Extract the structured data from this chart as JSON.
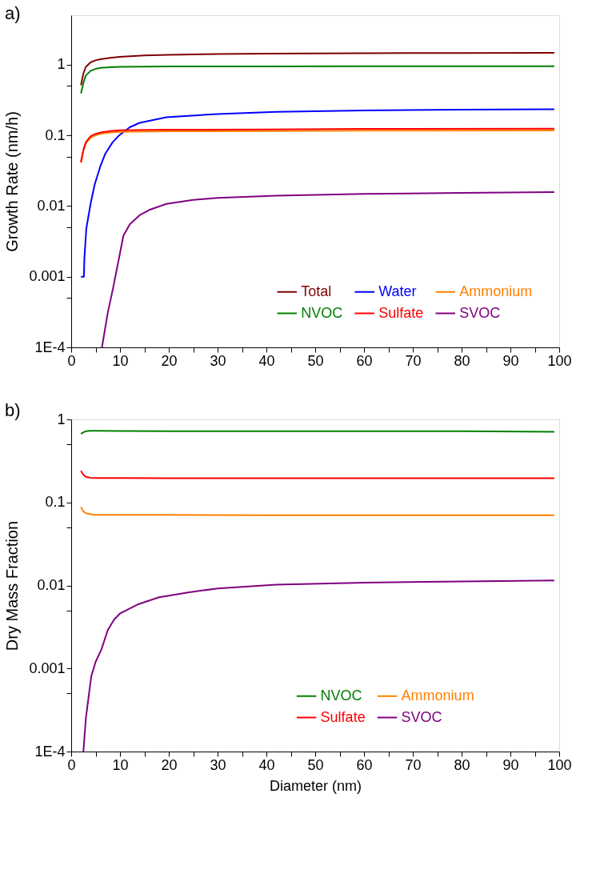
{
  "chart_data": [
    {
      "type": "line",
      "title": "a)",
      "ylabel": "Growth Rate (nm/h)",
      "log": "y",
      "grid": false,
      "legend": "bottom right",
      "line_style": "solid",
      "marker": "none",
      "xlim": [
        0,
        100
      ],
      "xticks": [
        0,
        {
          "value": 5,
          "label": null
        },
        10,
        {
          "value": 15,
          "label": null
        },
        20,
        {
          "value": 25,
          "label": null
        },
        30,
        {
          "value": 35,
          "label": null
        },
        40,
        {
          "value": 45,
          "label": null
        },
        50,
        {
          "value": 55,
          "label": null
        },
        60,
        {
          "value": 65,
          "label": null
        },
        70,
        {
          "value": 75,
          "label": null
        },
        80,
        {
          "value": 85,
          "label": null
        },
        90,
        {
          "value": 95,
          "label": null
        },
        100
      ],
      "ylim": [
        0.0001,
        5
      ],
      "yticks": [
        {
          "value": 0.0001,
          "label": "1E-4"
        },
        {
          "value": 0.0005,
          "label": null
        },
        0.001,
        {
          "value": 0.005,
          "label": null
        },
        0.01,
        {
          "value": 0.05,
          "label": null
        },
        0.1,
        {
          "value": 0.5,
          "label": null
        },
        1
      ],
      "series": [
        {
          "name": "Total",
          "color": "#800000",
          "x": [
            2,
            2.5,
            3,
            4,
            5,
            6,
            8,
            10,
            15,
            20,
            30,
            40,
            60,
            80,
            99
          ],
          "values": [
            0.51,
            0.75,
            0.93,
            1.08,
            1.15,
            1.19,
            1.25,
            1.29,
            1.35,
            1.38,
            1.41,
            1.43,
            1.45,
            1.46,
            1.47
          ]
        },
        {
          "name": "Water",
          "color": "#0000ff",
          "x": [
            2,
            2.6,
            2.7,
            3.1,
            4,
            4.8,
            6,
            7,
            8.5,
            9.7,
            12,
            14,
            19.5,
            30,
            42,
            60,
            80,
            99
          ],
          "values": [
            0.001,
            0.001,
            0.0018,
            0.0048,
            0.011,
            0.02,
            0.037,
            0.055,
            0.08,
            0.098,
            0.13,
            0.15,
            0.18,
            0.2,
            0.215,
            0.225,
            0.23,
            0.234
          ]
        },
        {
          "name": "Ammonium",
          "color": "#ff8000",
          "x": [
            2,
            2.5,
            3,
            4,
            5,
            6,
            8,
            10,
            20,
            40,
            60,
            99
          ],
          "values": [
            0.041,
            0.06,
            0.077,
            0.093,
            0.1,
            0.105,
            0.11,
            0.112,
            0.114,
            0.115,
            0.116,
            0.117
          ]
        },
        {
          "name": "NVOC",
          "color": "#008000",
          "x": [
            2,
            2.5,
            3,
            4,
            5,
            6,
            8,
            10,
            20,
            40,
            60,
            99
          ],
          "values": [
            0.39,
            0.55,
            0.7,
            0.82,
            0.87,
            0.9,
            0.92,
            0.93,
            0.94,
            0.945,
            0.95,
            0.95
          ]
        },
        {
          "name": "Sulfate",
          "color": "#ff0000",
          "x": [
            2,
            2.5,
            3,
            4,
            5,
            6,
            8,
            10,
            20,
            40,
            60,
            99
          ],
          "values": [
            0.042,
            0.062,
            0.08,
            0.097,
            0.105,
            0.11,
            0.115,
            0.118,
            0.12,
            0.121,
            0.123,
            0.124
          ]
        },
        {
          "name": "SVOC",
          "color": "#800080",
          "x": [
            6.3,
            7.5,
            8.6,
            10.7,
            12,
            14,
            16,
            19.5,
            25,
            30,
            42,
            60,
            80,
            99
          ],
          "values": [
            0.0001,
            0.00031,
            0.0007,
            0.0038,
            0.0055,
            0.0074,
            0.0088,
            0.0107,
            0.0122,
            0.013,
            0.014,
            0.0148,
            0.0153,
            0.0157
          ]
        }
      ]
    },
    {
      "type": "line",
      "title": "b)",
      "xlabel": "Diameter (nm)",
      "ylabel": "Dry Mass Fraction",
      "log": "y",
      "grid": false,
      "legend": "bottom right",
      "line_style": "solid",
      "marker": "none",
      "xlim": [
        0,
        100
      ],
      "xticks": [
        0,
        {
          "value": 5,
          "label": null
        },
        10,
        {
          "value": 15,
          "label": null
        },
        20,
        {
          "value": 25,
          "label": null
        },
        30,
        {
          "value": 35,
          "label": null
        },
        40,
        {
          "value": 45,
          "label": null
        },
        50,
        {
          "value": 55,
          "label": null
        },
        60,
        {
          "value": 65,
          "label": null
        },
        70,
        {
          "value": 75,
          "label": null
        },
        80,
        {
          "value": 85,
          "label": null
        },
        90,
        {
          "value": 95,
          "label": null
        },
        100
      ],
      "ylim": [
        0.0001,
        1
      ],
      "yticks": [
        {
          "value": 0.0001,
          "label": "1E-4"
        },
        {
          "value": 0.0005,
          "label": null
        },
        0.001,
        {
          "value": 0.005,
          "label": null
        },
        0.01,
        {
          "value": 0.05,
          "label": null
        },
        0.1,
        {
          "value": 0.5,
          "label": null
        },
        1
      ],
      "series": [
        {
          "name": "NVOC",
          "color": "#008000",
          "x": [
            2,
            2.5,
            3,
            4,
            5,
            10,
            20,
            40,
            60,
            80,
            99
          ],
          "values": [
            0.67,
            0.7,
            0.72,
            0.73,
            0.73,
            0.725,
            0.72,
            0.72,
            0.72,
            0.72,
            0.71
          ]
        },
        {
          "name": "Ammonium",
          "color": "#ff8000",
          "x": [
            2,
            2.5,
            3,
            4,
            5,
            10,
            20,
            40,
            60,
            80,
            99
          ],
          "values": [
            0.088,
            0.078,
            0.074,
            0.072,
            0.071,
            0.071,
            0.071,
            0.07,
            0.07,
            0.07,
            0.07
          ]
        },
        {
          "name": "Sulfate",
          "color": "#ff0000",
          "x": [
            2,
            2.5,
            3,
            4,
            5,
            10,
            20,
            40,
            60,
            80,
            99
          ],
          "values": [
            0.24,
            0.215,
            0.203,
            0.198,
            0.197,
            0.197,
            0.196,
            0.196,
            0.196,
            0.196,
            0.196
          ]
        },
        {
          "name": "SVOC",
          "color": "#800080",
          "x": [
            2.5,
            3,
            4.1,
            5,
            6.2,
            7.5,
            8.8,
            10,
            13.6,
            18,
            24.2,
            30,
            42,
            60,
            80,
            99
          ],
          "values": [
            0.0001,
            0.00025,
            0.0008,
            0.0012,
            0.0017,
            0.0029,
            0.0039,
            0.0046,
            0.0059,
            0.0072,
            0.0083,
            0.0092,
            0.0102,
            0.0108,
            0.0112,
            0.0115
          ]
        }
      ]
    }
  ]
}
